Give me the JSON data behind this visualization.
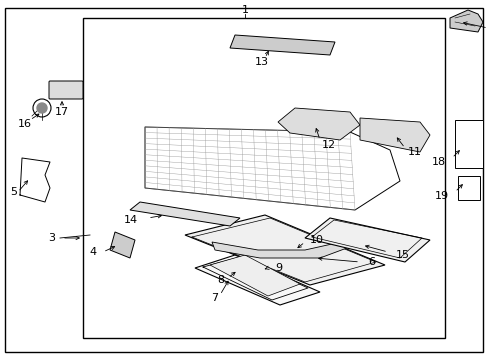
{
  "bg_color": "#ffffff",
  "line_color": "#000000",
  "fig_width": 4.9,
  "fig_height": 3.6,
  "dpi": 100,
  "font_size": 8
}
